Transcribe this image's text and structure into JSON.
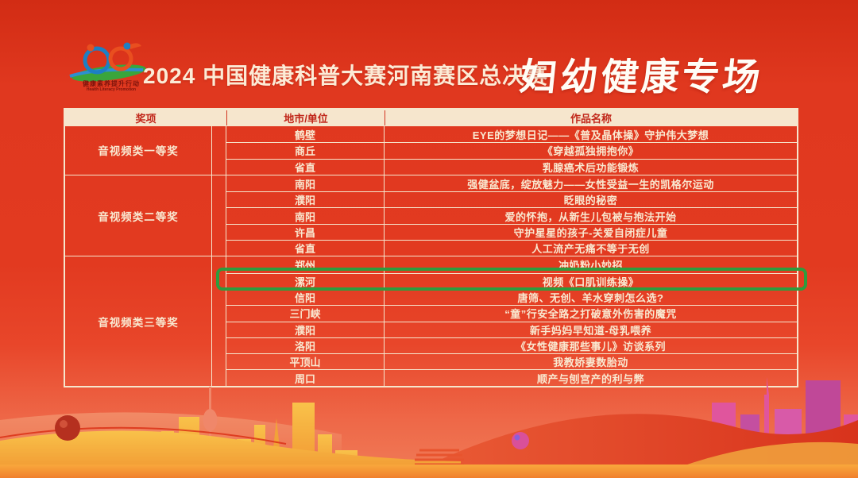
{
  "page": {
    "title": "2024 中国健康科普大赛河南赛区总决赛",
    "subtitle": "妇幼健康专场",
    "logo": {
      "text": "健康素养提升行动",
      "subtext": "Health Literacy Promotion"
    }
  },
  "colors": {
    "background_red": "#e23a20",
    "table_border_cream": "#f6e6cd",
    "header_bg_cream": "#f6e6cd",
    "header_text_red": "#c1271a",
    "body_text_cream": "#f9e9d1",
    "highlight_green": "#2d9c3e",
    "bottom_band_orange": "#f59a30"
  },
  "table": {
    "columns": [
      "奖项",
      "地市/单位",
      "作品名称"
    ],
    "groups": [
      {
        "award": "音视频类一等奖",
        "rows": [
          {
            "city": "鹤壁",
            "work": "EYE的梦想日记——《普及晶体操》守护伟大梦想"
          },
          {
            "city": "商丘",
            "work": "《穿越孤独拥抱你》"
          },
          {
            "city": "省直",
            "work": "乳腺癌术后功能锻炼"
          }
        ]
      },
      {
        "award": "音视频类二等奖",
        "rows": [
          {
            "city": "南阳",
            "work": "强健盆底，绽放魅力——女性受益一生的凯格尔运动"
          },
          {
            "city": "濮阳",
            "work": "眨眼的秘密"
          },
          {
            "city": "南阳",
            "work": "爱的怀抱，从新生儿包被与抱法开始"
          },
          {
            "city": "许昌",
            "work": "守护星星的孩子-关爱自闭症儿童"
          },
          {
            "city": "省直",
            "work": "人工流产无痛不等于无创"
          }
        ]
      },
      {
        "award": "音视频类三等奖",
        "rows": [
          {
            "city": "郑州",
            "work": "冲奶粉小妙招"
          },
          {
            "city": "漯河",
            "work": "视频《口肌训练操》",
            "highlighted": true
          },
          {
            "city": "信阳",
            "work": "唐筛、无创、羊水穿刺怎么选?"
          },
          {
            "city": "三门峡",
            "work": "“童”行安全路之打破意外伤害的魔咒"
          },
          {
            "city": "濮阳",
            "work": "新手妈妈早知道-母乳喂养"
          },
          {
            "city": "洛阳",
            "work": "《女性健康那些事儿》访谈系列"
          },
          {
            "city": "平顶山",
            "work": "我教娇妻数胎动"
          },
          {
            "city": "周口",
            "work": "顺产与刨宫产的利与弊"
          }
        ]
      }
    ]
  }
}
